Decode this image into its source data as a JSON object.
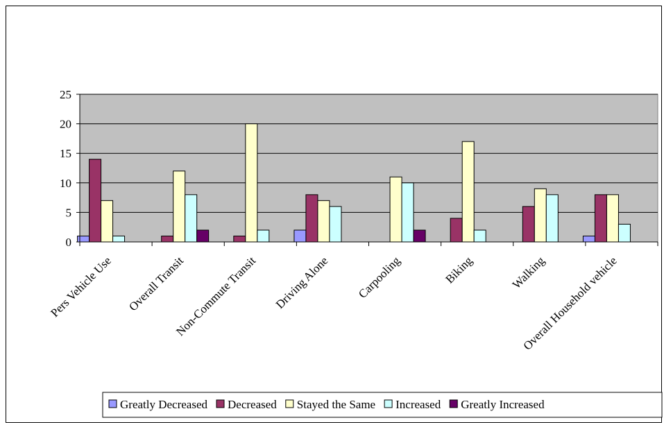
{
  "chart_data": {
    "type": "bar",
    "categories": [
      "Pers Vehicle Use",
      "Overall Transit",
      "Non-Commute Transit",
      "Driving Alone",
      "Carpooling",
      "Biking",
      "Walking",
      "Overall Household vehicle"
    ],
    "series": [
      {
        "name": "Greatly Decreased",
        "color": "#9999ff",
        "values": [
          1,
          0,
          0,
          2,
          0,
          0,
          0,
          1
        ]
      },
      {
        "name": "Decreased",
        "color": "#993366",
        "values": [
          14,
          1,
          1,
          8,
          0,
          4,
          6,
          8
        ]
      },
      {
        "name": "Stayed the Same",
        "color": "#ffffcc",
        "values": [
          7,
          12,
          20,
          7,
          11,
          17,
          9,
          8
        ]
      },
      {
        "name": "Increased",
        "color": "#ccffff",
        "values": [
          1,
          8,
          2,
          6,
          10,
          2,
          8,
          3
        ]
      },
      {
        "name": "Greatly Increased",
        "color": "#660066",
        "values": [
          0,
          2,
          0,
          0,
          2,
          0,
          0,
          0
        ]
      }
    ],
    "ylim": [
      0,
      25
    ],
    "yticks": [
      0,
      5,
      10,
      15,
      20,
      25
    ],
    "plot_background": "#c0c0c0",
    "grid": true,
    "legend_position": "bottom"
  }
}
